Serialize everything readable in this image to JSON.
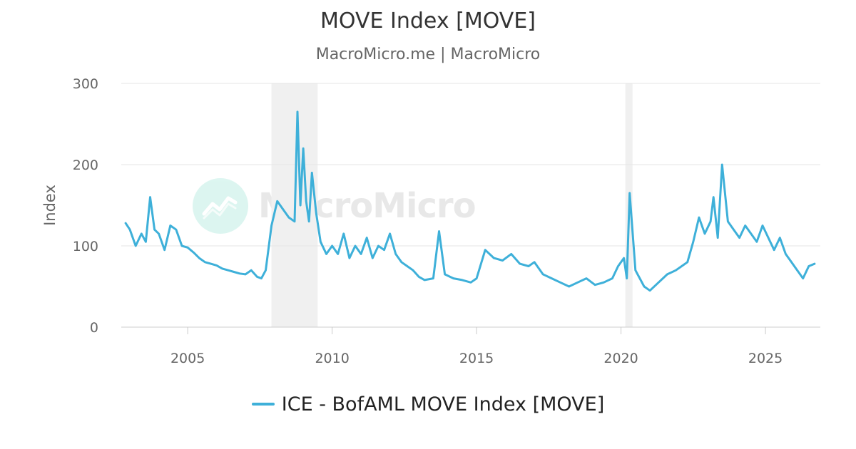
{
  "header": {
    "title": "MOVE Index [MOVE]",
    "subtitle": "MacroMicro.me | MacroMicro"
  },
  "watermark": {
    "text": "MacroMicro",
    "icon": "line-chart-logo-icon"
  },
  "legend": {
    "label": "ICE - BofAML MOVE Index [MOVE]"
  },
  "colors": {
    "series": "#3eb0d9",
    "grid": "#e6e6e6",
    "recession": "#f0f0f0",
    "axis_text": "#666666"
  },
  "chart_data": {
    "type": "line",
    "title": "MOVE Index [MOVE]",
    "subtitle": "MacroMicro.me | MacroMicro",
    "xlabel": "",
    "ylabel": "Index",
    "xlim": [
      2002.7,
      2026.9
    ],
    "ylim": [
      0,
      300
    ],
    "x_ticks": [
      2005,
      2010,
      2015,
      2020,
      2025
    ],
    "y_ticks": [
      0,
      100,
      200,
      300
    ],
    "grid": true,
    "legend_position": "bottom-center",
    "shaded_periods": [
      [
        2007.9,
        2009.5
      ],
      [
        2020.15,
        2020.4
      ]
    ],
    "series": [
      {
        "name": "ICE - BofAML MOVE Index [MOVE]",
        "x": [
          2002.85,
          2003.0,
          2003.2,
          2003.4,
          2003.55,
          2003.7,
          2003.85,
          2004.0,
          2004.2,
          2004.4,
          2004.6,
          2004.8,
          2005.0,
          2005.2,
          2005.4,
          2005.6,
          2005.8,
          2006.0,
          2006.2,
          2006.4,
          2006.6,
          2006.8,
          2007.0,
          2007.2,
          2007.4,
          2007.55,
          2007.7,
          2007.9,
          2008.1,
          2008.3,
          2008.5,
          2008.7,
          2008.8,
          2008.9,
          2009.0,
          2009.1,
          2009.2,
          2009.3,
          2009.45,
          2009.6,
          2009.8,
          2010.0,
          2010.2,
          2010.4,
          2010.6,
          2010.8,
          2011.0,
          2011.2,
          2011.4,
          2011.6,
          2011.8,
          2012.0,
          2012.2,
          2012.4,
          2012.6,
          2012.8,
          2013.0,
          2013.2,
          2013.5,
          2013.7,
          2013.9,
          2014.2,
          2014.5,
          2014.8,
          2015.0,
          2015.3,
          2015.6,
          2015.9,
          2016.2,
          2016.5,
          2016.8,
          2017.0,
          2017.3,
          2017.6,
          2017.9,
          2018.2,
          2018.5,
          2018.8,
          2019.1,
          2019.4,
          2019.7,
          2019.9,
          2020.1,
          2020.2,
          2020.3,
          2020.5,
          2020.8,
          2021.0,
          2021.3,
          2021.6,
          2021.9,
          2022.1,
          2022.3,
          2022.5,
          2022.7,
          2022.9,
          2023.1,
          2023.2,
          2023.35,
          2023.5,
          2023.7,
          2023.9,
          2024.1,
          2024.3,
          2024.5,
          2024.7,
          2024.9,
          2025.1,
          2025.3,
          2025.5,
          2025.7,
          2025.9,
          2026.1,
          2026.3,
          2026.5,
          2026.7
        ],
        "values": [
          128,
          120,
          100,
          115,
          105,
          160,
          120,
          115,
          95,
          125,
          120,
          100,
          98,
          92,
          85,
          80,
          78,
          76,
          72,
          70,
          68,
          66,
          65,
          70,
          62,
          60,
          70,
          125,
          155,
          145,
          135,
          130,
          265,
          150,
          220,
          155,
          130,
          190,
          140,
          105,
          90,
          100,
          90,
          115,
          85,
          100,
          90,
          110,
          85,
          100,
          95,
          115,
          90,
          80,
          75,
          70,
          62,
          58,
          60,
          118,
          65,
          60,
          58,
          55,
          60,
          95,
          85,
          82,
          90,
          78,
          75,
          80,
          65,
          60,
          55,
          50,
          55,
          60,
          52,
          55,
          60,
          75,
          85,
          60,
          165,
          70,
          50,
          45,
          55,
          65,
          70,
          75,
          80,
          105,
          135,
          115,
          130,
          160,
          110,
          200,
          130,
          120,
          110,
          125,
          115,
          105,
          125,
          110,
          95,
          110,
          90,
          80,
          70,
          60,
          75,
          78
        ]
      }
    ]
  }
}
